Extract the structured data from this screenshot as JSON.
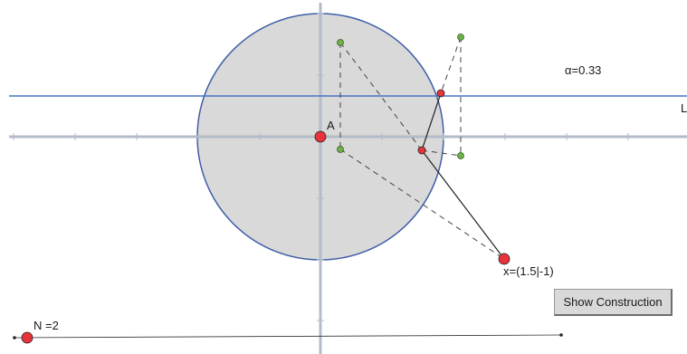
{
  "labels": {
    "alpha": "α=0.33",
    "point_a": "A",
    "point_x": "x=(1.5|-1)",
    "slider_n": "N =2",
    "line_l": "L"
  },
  "buttons": {
    "show_construction": "Show Construction"
  },
  "values": {
    "alpha": 0.33,
    "n": 2,
    "x_point": [
      1.5,
      -1
    ]
  },
  "colors": {
    "circle_fill": "#d9d9d9",
    "circle_stroke": "#3f5fa8",
    "axis": "#b3bcc8",
    "line_l": "#4a73c6",
    "point_red": "#e8333b",
    "point_green": "#6fb04a",
    "dashed": "#444444"
  }
}
